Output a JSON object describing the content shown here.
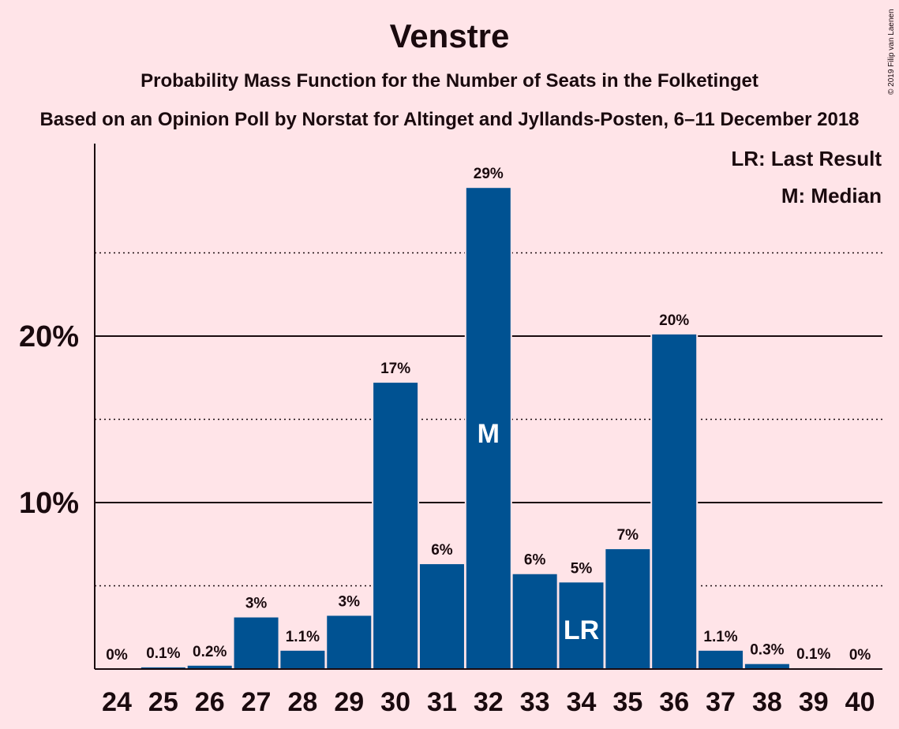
{
  "header": {
    "title": "Venstre",
    "subtitle": "Probability Mass Function for the Number of Seats in the Folketinget",
    "subtitle2": "Based on an Opinion Poll by Norstat for Altinget and Jyllands-Posten, 6–11 December 2018",
    "copyright": "© 2019 Filip van Laenen"
  },
  "legend": {
    "last_result": "LR: Last Result",
    "median": "M: Median"
  },
  "colors": {
    "bar": "#005292",
    "background": "#ffe4e8"
  },
  "chart_data": {
    "type": "bar",
    "title": "Venstre",
    "xlabel": "",
    "ylabel": "",
    "ylim": [
      0,
      31.5
    ],
    "yticks": [
      {
        "value": 10,
        "label": "10%"
      },
      {
        "value": 20,
        "label": "20%"
      }
    ],
    "minor_gridlines": [
      5,
      15,
      25
    ],
    "legend_position": "top-right",
    "categories": [
      "24",
      "25",
      "26",
      "27",
      "28",
      "29",
      "30",
      "31",
      "32",
      "33",
      "34",
      "35",
      "36",
      "37",
      "38",
      "39",
      "40"
    ],
    "values": [
      0,
      0.1,
      0.2,
      3.1,
      1.1,
      3.2,
      17.2,
      6.3,
      28.9,
      5.7,
      5.2,
      7.2,
      20.1,
      1.1,
      0.3,
      0.05,
      0
    ],
    "labels": [
      "0%",
      "0.1%",
      "0.2%",
      "3%",
      "1.1%",
      "3%",
      "17%",
      "6%",
      "29%",
      "6%",
      "5%",
      "7%",
      "20%",
      "1.1%",
      "0.3%",
      "0.1%",
      "0%"
    ],
    "median": "32",
    "median_marker": "M",
    "last_result": "34",
    "last_result_marker": "LR"
  }
}
